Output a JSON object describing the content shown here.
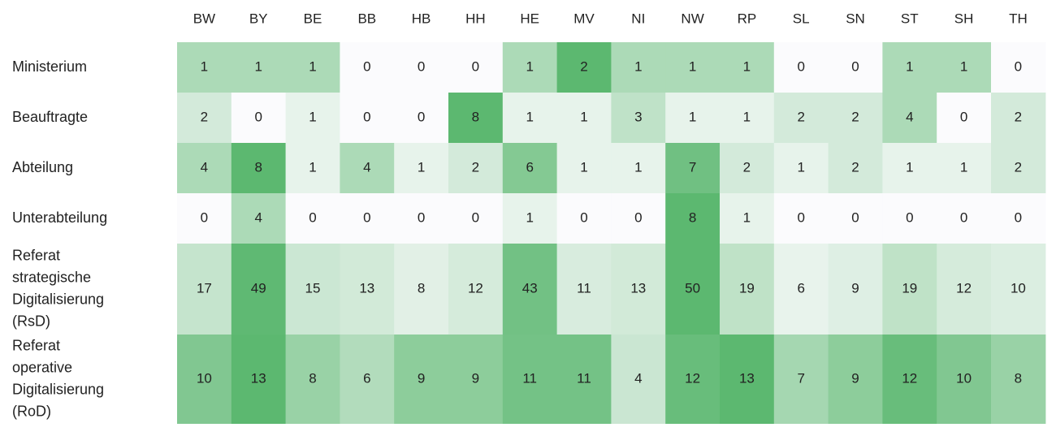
{
  "chart_data": {
    "type": "heatmap",
    "title": "",
    "xlabel": "",
    "ylabel": "",
    "columns": [
      "BW",
      "BY",
      "BE",
      "BB",
      "HB",
      "HH",
      "HE",
      "MV",
      "NI",
      "NW",
      "RP",
      "SL",
      "SN",
      "ST",
      "SH",
      "TH"
    ],
    "rows": [
      {
        "label_lines": [
          "Ministerium"
        ],
        "values": [
          1,
          1,
          1,
          0,
          0,
          0,
          1,
          2,
          1,
          1,
          1,
          0,
          0,
          1,
          1,
          0
        ]
      },
      {
        "label_lines": [
          "Beauftragte"
        ],
        "values": [
          2,
          0,
          1,
          0,
          0,
          8,
          1,
          1,
          3,
          1,
          1,
          2,
          2,
          4,
          0,
          2
        ]
      },
      {
        "label_lines": [
          "Abteilung"
        ],
        "values": [
          4,
          8,
          1,
          4,
          1,
          2,
          6,
          1,
          1,
          7,
          2,
          1,
          2,
          1,
          1,
          2
        ]
      },
      {
        "label_lines": [
          "Unterabteilung"
        ],
        "values": [
          0,
          4,
          0,
          0,
          0,
          0,
          1,
          0,
          0,
          8,
          1,
          0,
          0,
          0,
          0,
          0
        ]
      },
      {
        "label_lines": [
          "Referat",
          "strategische",
          "Digitalisierung",
          "(RsD)"
        ],
        "values": [
          17,
          49,
          15,
          13,
          8,
          12,
          43,
          11,
          13,
          50,
          19,
          6,
          9,
          19,
          12,
          10
        ]
      },
      {
        "label_lines": [
          "Referat",
          "operative",
          "Digitalisierung",
          "(RoD)"
        ],
        "values": [
          10,
          13,
          8,
          6,
          9,
          9,
          11,
          11,
          4,
          12,
          13,
          7,
          9,
          12,
          10,
          8
        ]
      }
    ],
    "color_scale": {
      "low": "#fbfbfd",
      "high": "#5cb870",
      "normalization": "per-row"
    },
    "grid": false,
    "legend": "none"
  }
}
